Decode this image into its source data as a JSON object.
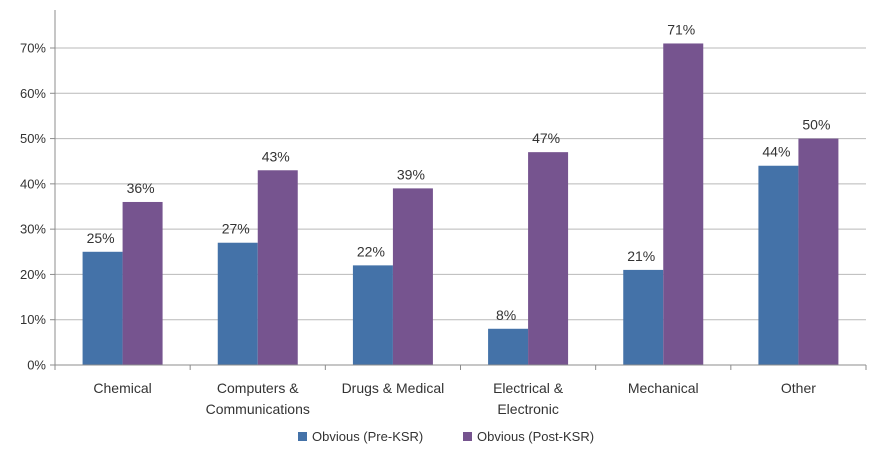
{
  "chart_data": {
    "type": "bar",
    "title": "",
    "xlabel": "",
    "ylabel": "",
    "categories": [
      [
        "Chemical"
      ],
      [
        "Computers &",
        "Communications"
      ],
      [
        "Drugs & Medical"
      ],
      [
        "Electrical &",
        "Electronic"
      ],
      [
        "Mechanical"
      ],
      [
        "Other"
      ]
    ],
    "series": [
      {
        "name": "Obvious (Pre-KSR)",
        "color": "#4472a8",
        "values": [
          25,
          27,
          22,
          8,
          21,
          44
        ],
        "labels": [
          "25%",
          "27%",
          "22%",
          "8%",
          "21%",
          "44%"
        ]
      },
      {
        "name": "Obvious (Post-KSR)",
        "color": "#76548f",
        "values": [
          36,
          43,
          39,
          47,
          71,
          50
        ],
        "labels": [
          "36%",
          "43%",
          "39%",
          "47%",
          "71%",
          "50%"
        ]
      }
    ],
    "ylim": [
      0,
      70
    ],
    "yticks": [
      0,
      10,
      20,
      30,
      40,
      50,
      60,
      70
    ],
    "ytick_labels": [
      "0%",
      "10%",
      "20%",
      "30%",
      "40%",
      "50%",
      "60%",
      "70%"
    ],
    "grid": true,
    "legend_position": "bottom"
  }
}
